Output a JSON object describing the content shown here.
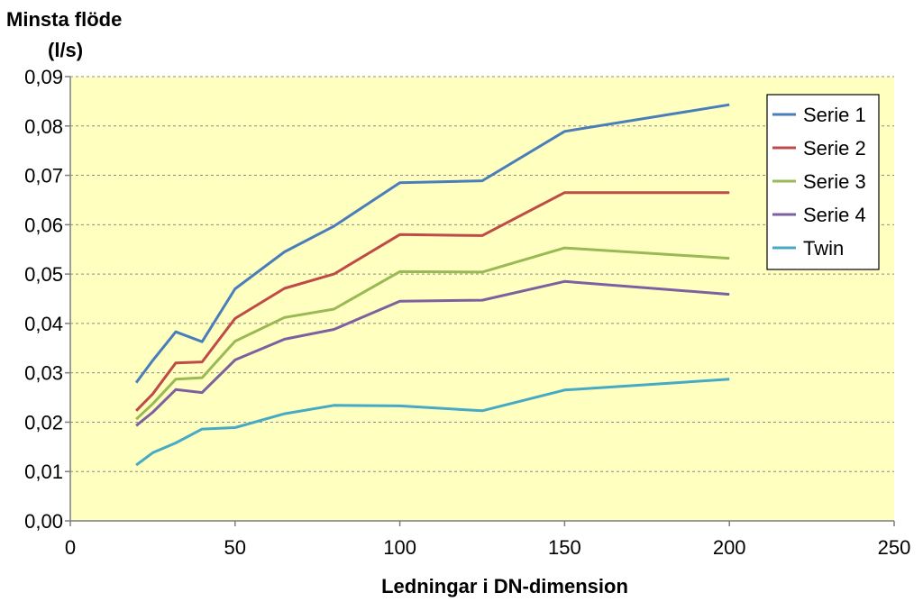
{
  "chart_data": {
    "type": "line",
    "ylabel_line1": "Minsta flöde",
    "ylabel_line2": "(l/s)",
    "xlabel": "Ledningar i DN-dimension",
    "xlim": [
      0,
      250
    ],
    "ylim": [
      0,
      0.09
    ],
    "x_ticks": [
      "0",
      "50",
      "100",
      "150",
      "200",
      "250"
    ],
    "y_ticks": [
      "0,00",
      "0,01",
      "0,02",
      "0,03",
      "0,04",
      "0,05",
      "0,06",
      "0,07",
      "0,08",
      "0,09"
    ],
    "grid": true,
    "legend_position": "top-right",
    "plot_background": "#ffffc0",
    "x": [
      20,
      25,
      32,
      40,
      50,
      65,
      80,
      100,
      125,
      150,
      200
    ],
    "series": [
      {
        "name": "Serie 1",
        "color": "#4a7ebb",
        "values": [
          0.028,
          0.0325,
          0.0383,
          0.0363,
          0.047,
          0.0545,
          0.0597,
          0.0685,
          0.0689,
          0.0789,
          0.0843
        ]
      },
      {
        "name": "Serie 2",
        "color": "#be4b48",
        "values": [
          0.0223,
          0.0257,
          0.032,
          0.0322,
          0.041,
          0.0471,
          0.05,
          0.058,
          0.0578,
          0.0665,
          0.0665
        ]
      },
      {
        "name": "Serie 3",
        "color": "#98b954",
        "values": [
          0.0206,
          0.0237,
          0.0287,
          0.029,
          0.0364,
          0.0412,
          0.0429,
          0.0505,
          0.0504,
          0.0553,
          0.0532
        ]
      },
      {
        "name": "Serie 4",
        "color": "#7d60a0",
        "values": [
          0.0193,
          0.022,
          0.0266,
          0.026,
          0.0326,
          0.0368,
          0.0388,
          0.0445,
          0.0447,
          0.0485,
          0.0459
        ]
      },
      {
        "name": "Twin",
        "color": "#46aac5",
        "values": [
          0.0113,
          0.0138,
          0.0158,
          0.0186,
          0.0189,
          0.0217,
          0.0234,
          0.0233,
          0.0223,
          0.0265,
          0.0287
        ]
      }
    ]
  }
}
